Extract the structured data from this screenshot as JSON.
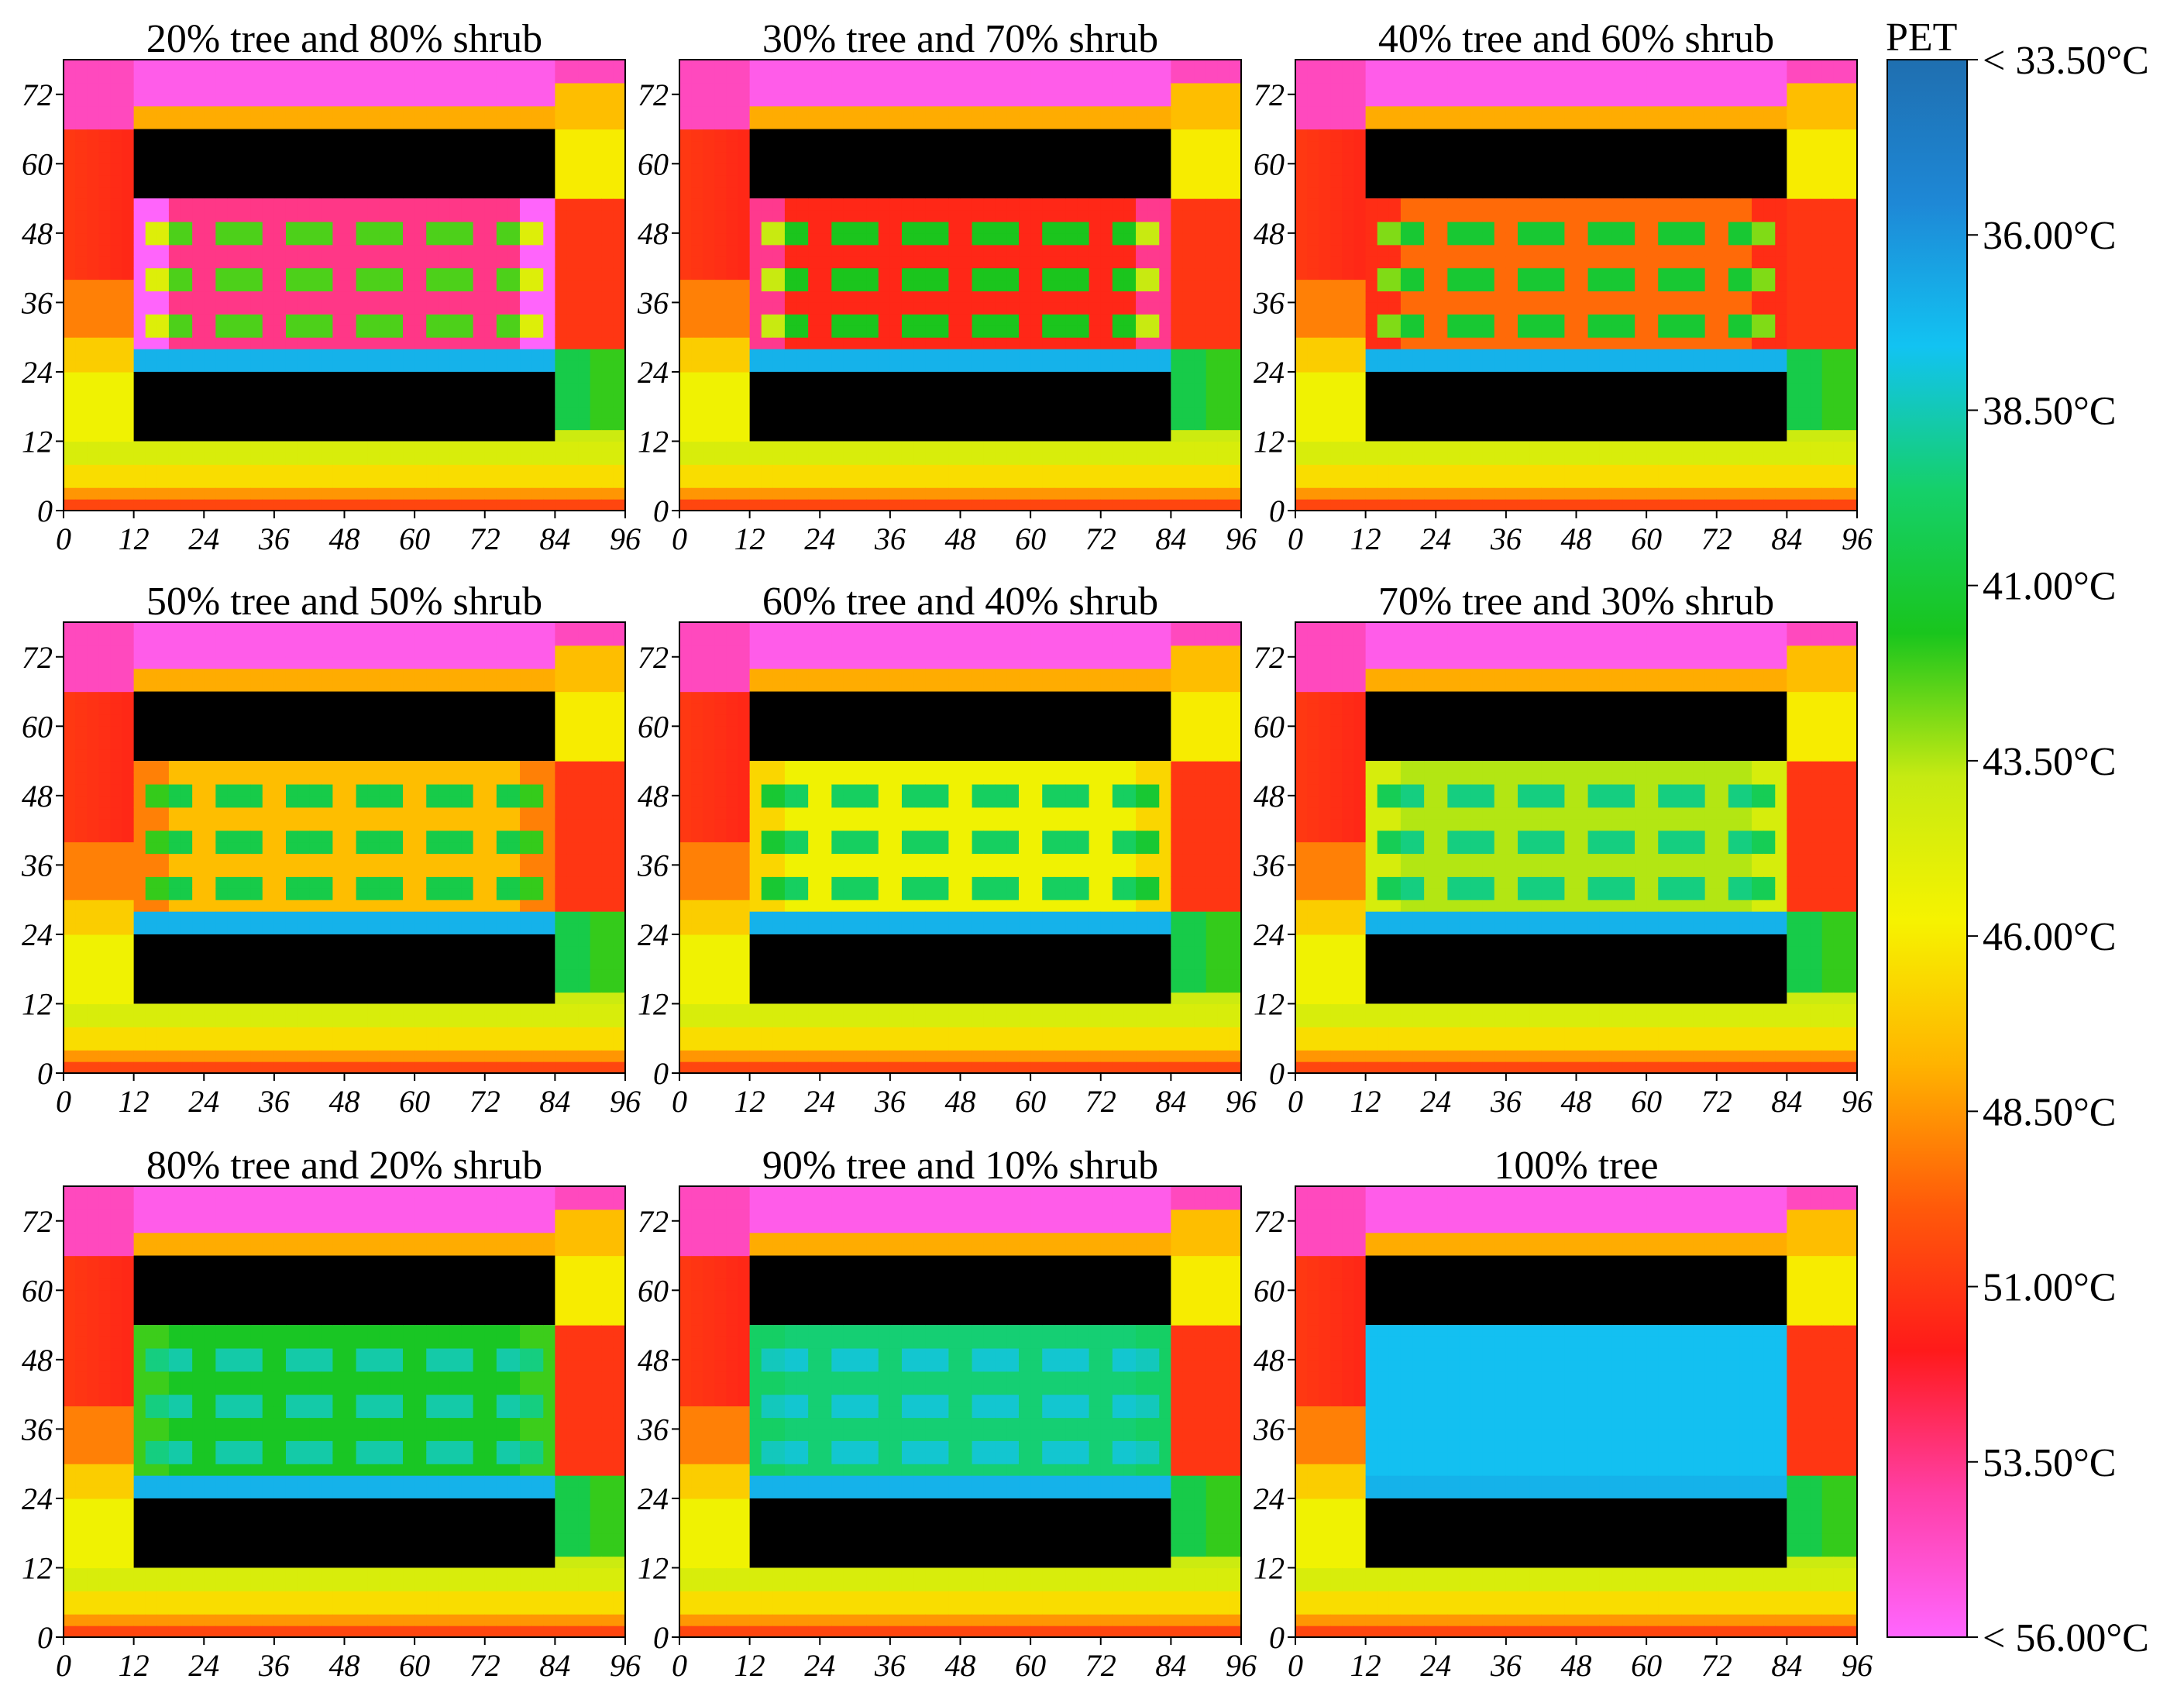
{
  "chart_data": {
    "type": "heatmap",
    "colorbar": {
      "title": "PET",
      "unit": "°C",
      "range": [
        33.5,
        56.0
      ],
      "tick_values": [
        33.5,
        36.0,
        38.5,
        41.0,
        43.5,
        46.0,
        48.5,
        51.0,
        53.5,
        56.0
      ],
      "tick_labels": [
        "< 33.50°C",
        "36.00°C",
        "38.50°C",
        "41.00°C",
        "43.50°C",
        "46.00°C",
        "48.50°C",
        "51.00°C",
        "53.50°C",
        "< 56.00°C"
      ],
      "colors": [
        "#1f6fb0",
        "#1e88d6",
        "#12c3f2",
        "#15d06a",
        "#19c51d",
        "#c6ea12",
        "#f6f300",
        "#ffb400",
        "#ff5a0a",
        "#ff1a1a",
        "#ff3fa6",
        "#ff66ff"
      ]
    },
    "x_ticks": [
      0,
      12,
      24,
      36,
      48,
      60,
      72,
      84,
      96
    ],
    "y_ticks": [
      0,
      12,
      24,
      36,
      48,
      60,
      72
    ],
    "xlim": [
      0,
      96
    ],
    "ylim": [
      0,
      78
    ],
    "buildings": [
      {
        "x": [
          12,
          84
        ],
        "y": [
          12,
          24
        ]
      },
      {
        "x": [
          12,
          84
        ],
        "y": [
          54,
          66
        ]
      }
    ],
    "panels": [
      {
        "title": "20% tree and 80% shrub",
        "tree_fraction": 0.2
      },
      {
        "title": "30% tree and 70% shrub",
        "tree_fraction": 0.3
      },
      {
        "title": "40% tree and 60% shrub",
        "tree_fraction": 0.4
      },
      {
        "title": "50% tree and 50% shrub",
        "tree_fraction": 0.5
      },
      {
        "title": "60% tree and 40% shrub",
        "tree_fraction": 0.6
      },
      {
        "title": "70% tree and 30% shrub",
        "tree_fraction": 0.7
      },
      {
        "title": "80% tree and 20% shrub",
        "tree_fraction": 0.8
      },
      {
        "title": "90% tree and 10% shrub",
        "tree_fraction": 0.9
      },
      {
        "title": "100% tree",
        "tree_fraction": 1.0
      }
    ]
  }
}
